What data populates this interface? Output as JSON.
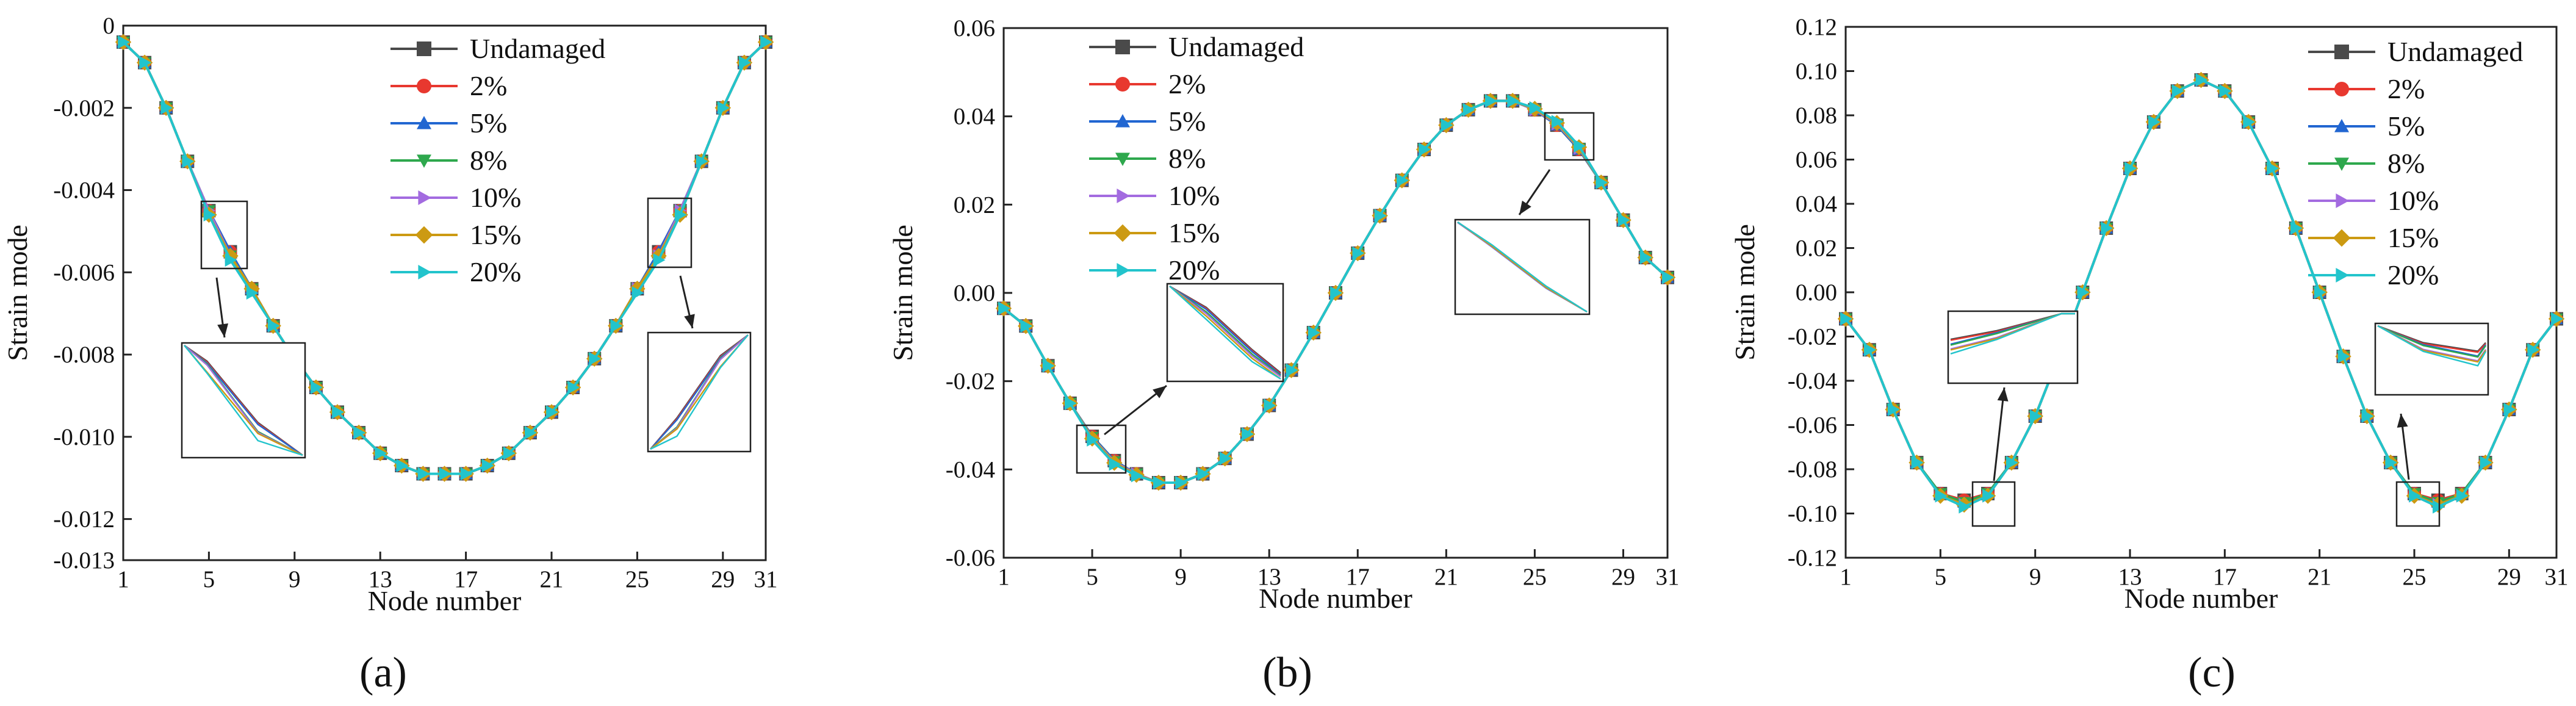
{
  "colors": {
    "Undamaged": "#4a4a4a",
    "2%": "#e8382f",
    "5%": "#2166d1",
    "8%": "#2ea84d",
    "10%": "#a36be0",
    "15%": "#cc9a12",
    "20%": "#22c4cc"
  },
  "chart_data": [
    {
      "type": "line",
      "panel": "a",
      "xlabel": "Node number",
      "ylabel": "Strain mode",
      "xlim": [
        1,
        31
      ],
      "ylim": [
        -0.013,
        0
      ],
      "xticks": [
        1,
        5,
        9,
        13,
        17,
        21,
        25,
        29,
        31
      ],
      "yticks": [
        0,
        -0.002,
        -0.004,
        -0.006,
        -0.008,
        -0.01,
        -0.012,
        -0.013
      ],
      "ytick_labels": [
        "0",
        "-0.002",
        "-0.004",
        "-0.006",
        "-0.008",
        "-0.010",
        "-0.012",
        "-0.013"
      ],
      "legend": [
        "Undamaged",
        "2%",
        "5%",
        "8%",
        "10%",
        "15%",
        "20%"
      ],
      "x": [
        1,
        2,
        3,
        4,
        5,
        6,
        7,
        8,
        9,
        10,
        11,
        12,
        13,
        14,
        15,
        16,
        17,
        18,
        19,
        20,
        21,
        22,
        23,
        24,
        25,
        26,
        27,
        28,
        29,
        30,
        31
      ],
      "series": [
        {
          "name": "Undamaged",
          "values": [
            -0.0004,
            -0.0009,
            -0.002,
            -0.0033,
            -0.0045,
            -0.0055,
            -0.0064,
            -0.0073,
            -0.0081,
            -0.0088,
            -0.0094,
            -0.0099,
            -0.0104,
            -0.0107,
            -0.0109,
            -0.0109,
            -0.0109,
            -0.0107,
            -0.0104,
            -0.0099,
            -0.0094,
            -0.0088,
            -0.0081,
            -0.0073,
            -0.0064,
            -0.0055,
            -0.0045,
            -0.0033,
            -0.002,
            -0.0009,
            -0.0004
          ]
        },
        {
          "name": "2%",
          "values": [
            -0.0004,
            -0.0009,
            -0.002,
            -0.0033,
            -0.0045,
            -0.0055,
            -0.0064,
            -0.0073,
            -0.0081,
            -0.0088,
            -0.0094,
            -0.0099,
            -0.0104,
            -0.0107,
            -0.0109,
            -0.0109,
            -0.0109,
            -0.0107,
            -0.0104,
            -0.0099,
            -0.0094,
            -0.0088,
            -0.0081,
            -0.0073,
            -0.0064,
            -0.0055,
            -0.0045,
            -0.0033,
            -0.002,
            -0.0009,
            -0.0004
          ]
        },
        {
          "name": "5%",
          "values": [
            -0.0004,
            -0.0009,
            -0.002,
            -0.0033,
            -0.0045,
            -0.0055,
            -0.0064,
            -0.0073,
            -0.0081,
            -0.0088,
            -0.0094,
            -0.0099,
            -0.0104,
            -0.0107,
            -0.0109,
            -0.0109,
            -0.0109,
            -0.0107,
            -0.0104,
            -0.0099,
            -0.0094,
            -0.0088,
            -0.0081,
            -0.0073,
            -0.0064,
            -0.0055,
            -0.0045,
            -0.0033,
            -0.002,
            -0.0009,
            -0.0004
          ]
        },
        {
          "name": "8%",
          "values": [
            -0.0004,
            -0.0009,
            -0.002,
            -0.0033,
            -0.0045,
            -0.0056,
            -0.0064,
            -0.0073,
            -0.0081,
            -0.0088,
            -0.0094,
            -0.0099,
            -0.0104,
            -0.0107,
            -0.0109,
            -0.0109,
            -0.0109,
            -0.0107,
            -0.0104,
            -0.0099,
            -0.0094,
            -0.0088,
            -0.0081,
            -0.0073,
            -0.0064,
            -0.0056,
            -0.0045,
            -0.0033,
            -0.002,
            -0.0009,
            -0.0004
          ]
        },
        {
          "name": "10%",
          "values": [
            -0.0004,
            -0.0009,
            -0.002,
            -0.0033,
            -0.0045,
            -0.0056,
            -0.0064,
            -0.0073,
            -0.0081,
            -0.0088,
            -0.0094,
            -0.0099,
            -0.0104,
            -0.0107,
            -0.0109,
            -0.0109,
            -0.0109,
            -0.0107,
            -0.0104,
            -0.0099,
            -0.0094,
            -0.0088,
            -0.0081,
            -0.0073,
            -0.0064,
            -0.0056,
            -0.0045,
            -0.0033,
            -0.002,
            -0.0009,
            -0.0004
          ]
        },
        {
          "name": "15%",
          "values": [
            -0.0004,
            -0.0009,
            -0.002,
            -0.0033,
            -0.0046,
            -0.0056,
            -0.0064,
            -0.0073,
            -0.0081,
            -0.0088,
            -0.0094,
            -0.0099,
            -0.0104,
            -0.0107,
            -0.0109,
            -0.0109,
            -0.0109,
            -0.0107,
            -0.0104,
            -0.0099,
            -0.0094,
            -0.0088,
            -0.0081,
            -0.0073,
            -0.0064,
            -0.0056,
            -0.0046,
            -0.0033,
            -0.002,
            -0.0009,
            -0.0004
          ]
        },
        {
          "name": "20%",
          "values": [
            -0.0004,
            -0.0009,
            -0.002,
            -0.0033,
            -0.0046,
            -0.0057,
            -0.0065,
            -0.0073,
            -0.0081,
            -0.0088,
            -0.0094,
            -0.0099,
            -0.0104,
            -0.0107,
            -0.0109,
            -0.0109,
            -0.0109,
            -0.0107,
            -0.0104,
            -0.0099,
            -0.0094,
            -0.0088,
            -0.0081,
            -0.0073,
            -0.0065,
            -0.0057,
            -0.0046,
            -0.0033,
            -0.002,
            -0.0009,
            -0.0004
          ]
        }
      ]
    },
    {
      "type": "line",
      "panel": "b",
      "xlabel": "Node number",
      "ylabel": "Strain mode",
      "xlim": [
        1,
        31
      ],
      "ylim": [
        -0.06,
        0.06
      ],
      "xticks": [
        1,
        5,
        9,
        13,
        17,
        21,
        25,
        29,
        31
      ],
      "yticks": [
        0.06,
        0.04,
        0.02,
        0.0,
        -0.02,
        -0.04,
        -0.06
      ],
      "ytick_labels": [
        "0.06",
        "0.04",
        "0.02",
        "0.00",
        "-0.02",
        "-0.04",
        "-0.06"
      ],
      "legend": [
        "Undamaged",
        "2%",
        "5%",
        "8%",
        "10%",
        "15%",
        "20%"
      ],
      "x": [
        1,
        2,
        3,
        4,
        5,
        6,
        7,
        8,
        9,
        10,
        11,
        12,
        13,
        14,
        15,
        16,
        17,
        18,
        19,
        20,
        21,
        22,
        23,
        24,
        25,
        26,
        27,
        28,
        29,
        30,
        31
      ],
      "series": [
        {
          "name": "Undamaged",
          "values": [
            -0.0035,
            -0.0075,
            -0.0165,
            -0.025,
            -0.0325,
            -0.038,
            -0.041,
            -0.043,
            -0.043,
            -0.041,
            -0.0375,
            -0.032,
            -0.0255,
            -0.0175,
            -0.009,
            0.0,
            0.009,
            0.0175,
            0.0255,
            0.0325,
            0.038,
            0.0415,
            0.0435,
            0.0435,
            0.0415,
            0.038,
            0.0325,
            0.025,
            0.0165,
            0.008,
            0.0035
          ]
        },
        {
          "name": "2%",
          "values": [
            -0.0035,
            -0.0075,
            -0.0165,
            -0.025,
            -0.0325,
            -0.038,
            -0.041,
            -0.043,
            -0.043,
            -0.041,
            -0.0375,
            -0.032,
            -0.0255,
            -0.0175,
            -0.009,
            0.0,
            0.009,
            0.0175,
            0.0255,
            0.0325,
            0.038,
            0.0415,
            0.0435,
            0.0435,
            0.0415,
            0.038,
            0.0325,
            0.025,
            0.0165,
            0.008,
            0.0035
          ]
        },
        {
          "name": "5%",
          "values": [
            -0.0035,
            -0.0075,
            -0.0165,
            -0.025,
            -0.0325,
            -0.038,
            -0.041,
            -0.043,
            -0.043,
            -0.041,
            -0.0375,
            -0.032,
            -0.0255,
            -0.0175,
            -0.009,
            0.0,
            0.009,
            0.0175,
            0.0255,
            0.0325,
            0.038,
            0.0415,
            0.0435,
            0.0435,
            0.0415,
            0.038,
            0.0325,
            0.025,
            0.0165,
            0.008,
            0.0035
          ]
        },
        {
          "name": "8%",
          "values": [
            -0.0035,
            -0.0075,
            -0.0165,
            -0.025,
            -0.0327,
            -0.0382,
            -0.041,
            -0.043,
            -0.043,
            -0.041,
            -0.0375,
            -0.032,
            -0.0255,
            -0.0175,
            -0.009,
            0.0,
            0.009,
            0.0175,
            0.0255,
            0.0325,
            0.038,
            0.0415,
            0.0435,
            0.0435,
            0.0415,
            0.0382,
            0.0327,
            0.025,
            0.0165,
            0.008,
            0.0035
          ]
        },
        {
          "name": "10%",
          "values": [
            -0.0035,
            -0.0075,
            -0.0165,
            -0.025,
            -0.0328,
            -0.0383,
            -0.041,
            -0.043,
            -0.043,
            -0.041,
            -0.0375,
            -0.032,
            -0.0255,
            -0.0175,
            -0.009,
            0.0,
            0.009,
            0.0175,
            0.0255,
            0.0325,
            0.038,
            0.0415,
            0.0435,
            0.0435,
            0.0415,
            0.0383,
            0.0328,
            0.025,
            0.0165,
            0.008,
            0.0035
          ]
        },
        {
          "name": "15%",
          "values": [
            -0.0035,
            -0.0075,
            -0.0165,
            -0.025,
            -0.033,
            -0.0385,
            -0.0412,
            -0.043,
            -0.043,
            -0.041,
            -0.0375,
            -0.032,
            -0.0255,
            -0.0175,
            -0.009,
            0.0,
            0.009,
            0.0175,
            0.0255,
            0.0325,
            0.038,
            0.0415,
            0.0435,
            0.0435,
            0.0417,
            0.0385,
            0.033,
            0.025,
            0.0165,
            0.008,
            0.0035
          ]
        },
        {
          "name": "20%",
          "values": [
            -0.0035,
            -0.0075,
            -0.0165,
            -0.025,
            -0.0333,
            -0.0388,
            -0.0414,
            -0.043,
            -0.043,
            -0.041,
            -0.0375,
            -0.032,
            -0.0255,
            -0.0175,
            -0.009,
            0.0,
            0.009,
            0.0175,
            0.0255,
            0.0325,
            0.038,
            0.0415,
            0.0435,
            0.0435,
            0.0419,
            0.0388,
            0.0333,
            0.025,
            0.0165,
            0.008,
            0.0035
          ]
        }
      ]
    },
    {
      "type": "line",
      "panel": "c",
      "xlabel": "Node number",
      "ylabel": "Strain mode",
      "xlim": [
        1,
        31
      ],
      "ylim": [
        -0.12,
        0.12
      ],
      "xticks": [
        1,
        5,
        9,
        13,
        17,
        21,
        25,
        29,
        31
      ],
      "yticks": [
        0.12,
        0.1,
        0.08,
        0.06,
        0.04,
        0.02,
        0.0,
        -0.02,
        -0.04,
        -0.06,
        -0.08,
        -0.1,
        -0.12
      ],
      "ytick_labels": [
        "0.12",
        "0.10",
        "0.08",
        "0.06",
        "0.04",
        "0.02",
        "0.00",
        "-0.02",
        "-0.04",
        "-0.06",
        "-0.08",
        "-0.10",
        "-0.12"
      ],
      "legend": [
        "Undamaged",
        "2%",
        "5%",
        "8%",
        "10%",
        "15%",
        "20%"
      ],
      "x": [
        1,
        2,
        3,
        4,
        5,
        6,
        7,
        8,
        9,
        10,
        11,
        12,
        13,
        14,
        15,
        16,
        17,
        18,
        19,
        20,
        21,
        22,
        23,
        24,
        25,
        26,
        27,
        28,
        29,
        30,
        31
      ],
      "series": [
        {
          "name": "Undamaged",
          "values": [
            -0.012,
            -0.026,
            -0.053,
            -0.077,
            -0.091,
            -0.094,
            -0.091,
            -0.077,
            -0.056,
            -0.029,
            0.0,
            0.029,
            0.056,
            0.077,
            0.091,
            0.096,
            0.091,
            0.077,
            0.056,
            0.029,
            0.0,
            -0.029,
            -0.056,
            -0.077,
            -0.091,
            -0.094,
            -0.091,
            -0.077,
            -0.053,
            -0.026,
            -0.012
          ]
        },
        {
          "name": "2%",
          "values": [
            -0.012,
            -0.026,
            -0.053,
            -0.077,
            -0.091,
            -0.094,
            -0.091,
            -0.077,
            -0.056,
            -0.029,
            0.0,
            0.029,
            0.056,
            0.077,
            0.091,
            0.096,
            0.091,
            0.077,
            0.056,
            0.029,
            0.0,
            -0.029,
            -0.056,
            -0.077,
            -0.091,
            -0.094,
            -0.091,
            -0.077,
            -0.053,
            -0.026,
            -0.012
          ]
        },
        {
          "name": "5%",
          "values": [
            -0.012,
            -0.026,
            -0.053,
            -0.077,
            -0.091,
            -0.095,
            -0.091,
            -0.077,
            -0.056,
            -0.029,
            0.0,
            0.029,
            0.056,
            0.077,
            0.091,
            0.096,
            0.091,
            0.077,
            0.056,
            0.029,
            0.0,
            -0.029,
            -0.056,
            -0.077,
            -0.091,
            -0.095,
            -0.091,
            -0.077,
            -0.053,
            -0.026,
            -0.012
          ]
        },
        {
          "name": "8%",
          "values": [
            -0.012,
            -0.026,
            -0.053,
            -0.077,
            -0.091,
            -0.095,
            -0.091,
            -0.077,
            -0.056,
            -0.029,
            0.0,
            0.029,
            0.056,
            0.077,
            0.091,
            0.096,
            0.091,
            0.077,
            0.056,
            0.029,
            0.0,
            -0.029,
            -0.056,
            -0.077,
            -0.091,
            -0.095,
            -0.091,
            -0.077,
            -0.053,
            -0.026,
            -0.012
          ]
        },
        {
          "name": "10%",
          "values": [
            -0.012,
            -0.026,
            -0.053,
            -0.077,
            -0.092,
            -0.096,
            -0.092,
            -0.077,
            -0.056,
            -0.029,
            0.0,
            0.029,
            0.056,
            0.077,
            0.091,
            0.096,
            0.091,
            0.077,
            0.056,
            0.029,
            0.0,
            -0.029,
            -0.056,
            -0.077,
            -0.092,
            -0.096,
            -0.092,
            -0.077,
            -0.053,
            -0.026,
            -0.012
          ]
        },
        {
          "name": "15%",
          "values": [
            -0.012,
            -0.026,
            -0.053,
            -0.077,
            -0.092,
            -0.096,
            -0.092,
            -0.077,
            -0.056,
            -0.029,
            0.0,
            0.029,
            0.056,
            0.077,
            0.091,
            0.096,
            0.091,
            0.077,
            0.056,
            0.029,
            0.0,
            -0.029,
            -0.056,
            -0.077,
            -0.092,
            -0.096,
            -0.092,
            -0.077,
            -0.053,
            -0.026,
            -0.012
          ]
        },
        {
          "name": "20%",
          "values": [
            -0.012,
            -0.026,
            -0.053,
            -0.077,
            -0.092,
            -0.097,
            -0.092,
            -0.077,
            -0.056,
            -0.029,
            0.0,
            0.029,
            0.056,
            0.077,
            0.091,
            0.096,
            0.091,
            0.077,
            0.056,
            0.029,
            0.0,
            -0.029,
            -0.056,
            -0.077,
            -0.092,
            -0.097,
            -0.092,
            -0.077,
            -0.053,
            -0.026,
            -0.012
          ]
        }
      ]
    }
  ],
  "panels": [
    "(a)",
    "(b)",
    "(c)"
  ]
}
